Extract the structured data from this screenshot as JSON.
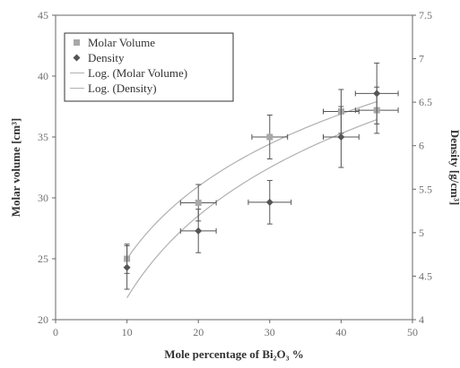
{
  "chart_data": {
    "type": "scatter",
    "title": "",
    "xlabel": "Mole percentage of Bi₂O₃ %",
    "ylabel": "Molar volume [cm³]",
    "y2label": "Density [g/cm³]",
    "xlim": [
      0,
      50
    ],
    "ylim": [
      20,
      45
    ],
    "y2lim": [
      4,
      7.5
    ],
    "xticks": [
      "0",
      "10",
      "20",
      "30",
      "40",
      "50"
    ],
    "yticks": [
      "20",
      "25",
      "30",
      "35",
      "40",
      "45"
    ],
    "y2ticks": [
      "4",
      "4.5",
      "5",
      "5.5",
      "6",
      "6.5",
      "7",
      "7.5"
    ],
    "grid": false,
    "legend": "top-left",
    "series": [
      {
        "name": "Molar Volume",
        "axis": "left",
        "marker": "square",
        "color": "#a8a8a8",
        "x": [
          10,
          20,
          30,
          40,
          45
        ],
        "y": [
          25.0,
          29.6,
          35.0,
          37.1,
          37.2
        ],
        "yerr": [
          1.2,
          1.5,
          1.8,
          1.8,
          1.9
        ],
        "xerr": [
          0,
          2.5,
          2.5,
          2.5,
          3.0
        ]
      },
      {
        "name": "Density",
        "axis": "right",
        "marker": "diamond",
        "color": "#555555",
        "x": [
          10,
          20,
          30,
          40,
          45
        ],
        "y": [
          4.6,
          5.02,
          5.35,
          6.1,
          6.6
        ],
        "yerr": [
          0.25,
          0.25,
          0.25,
          0.35,
          0.35
        ],
        "xerr": [
          0,
          2.5,
          3.0,
          2.5,
          3.0
        ]
      }
    ],
    "trendlines": [
      {
        "name": "Log. (Molar Volume)",
        "axis": "left",
        "type": "log",
        "x_range": [
          10,
          45
        ],
        "y_start": 25.0,
        "y_end": 37.9,
        "color": "#b0b0b0"
      },
      {
        "name": "Log. (Density)",
        "axis": "right",
        "type": "log",
        "x_range": [
          10,
          45
        ],
        "y_start": 4.25,
        "y_end": 6.3,
        "color": "#b0b0b0"
      }
    ]
  }
}
